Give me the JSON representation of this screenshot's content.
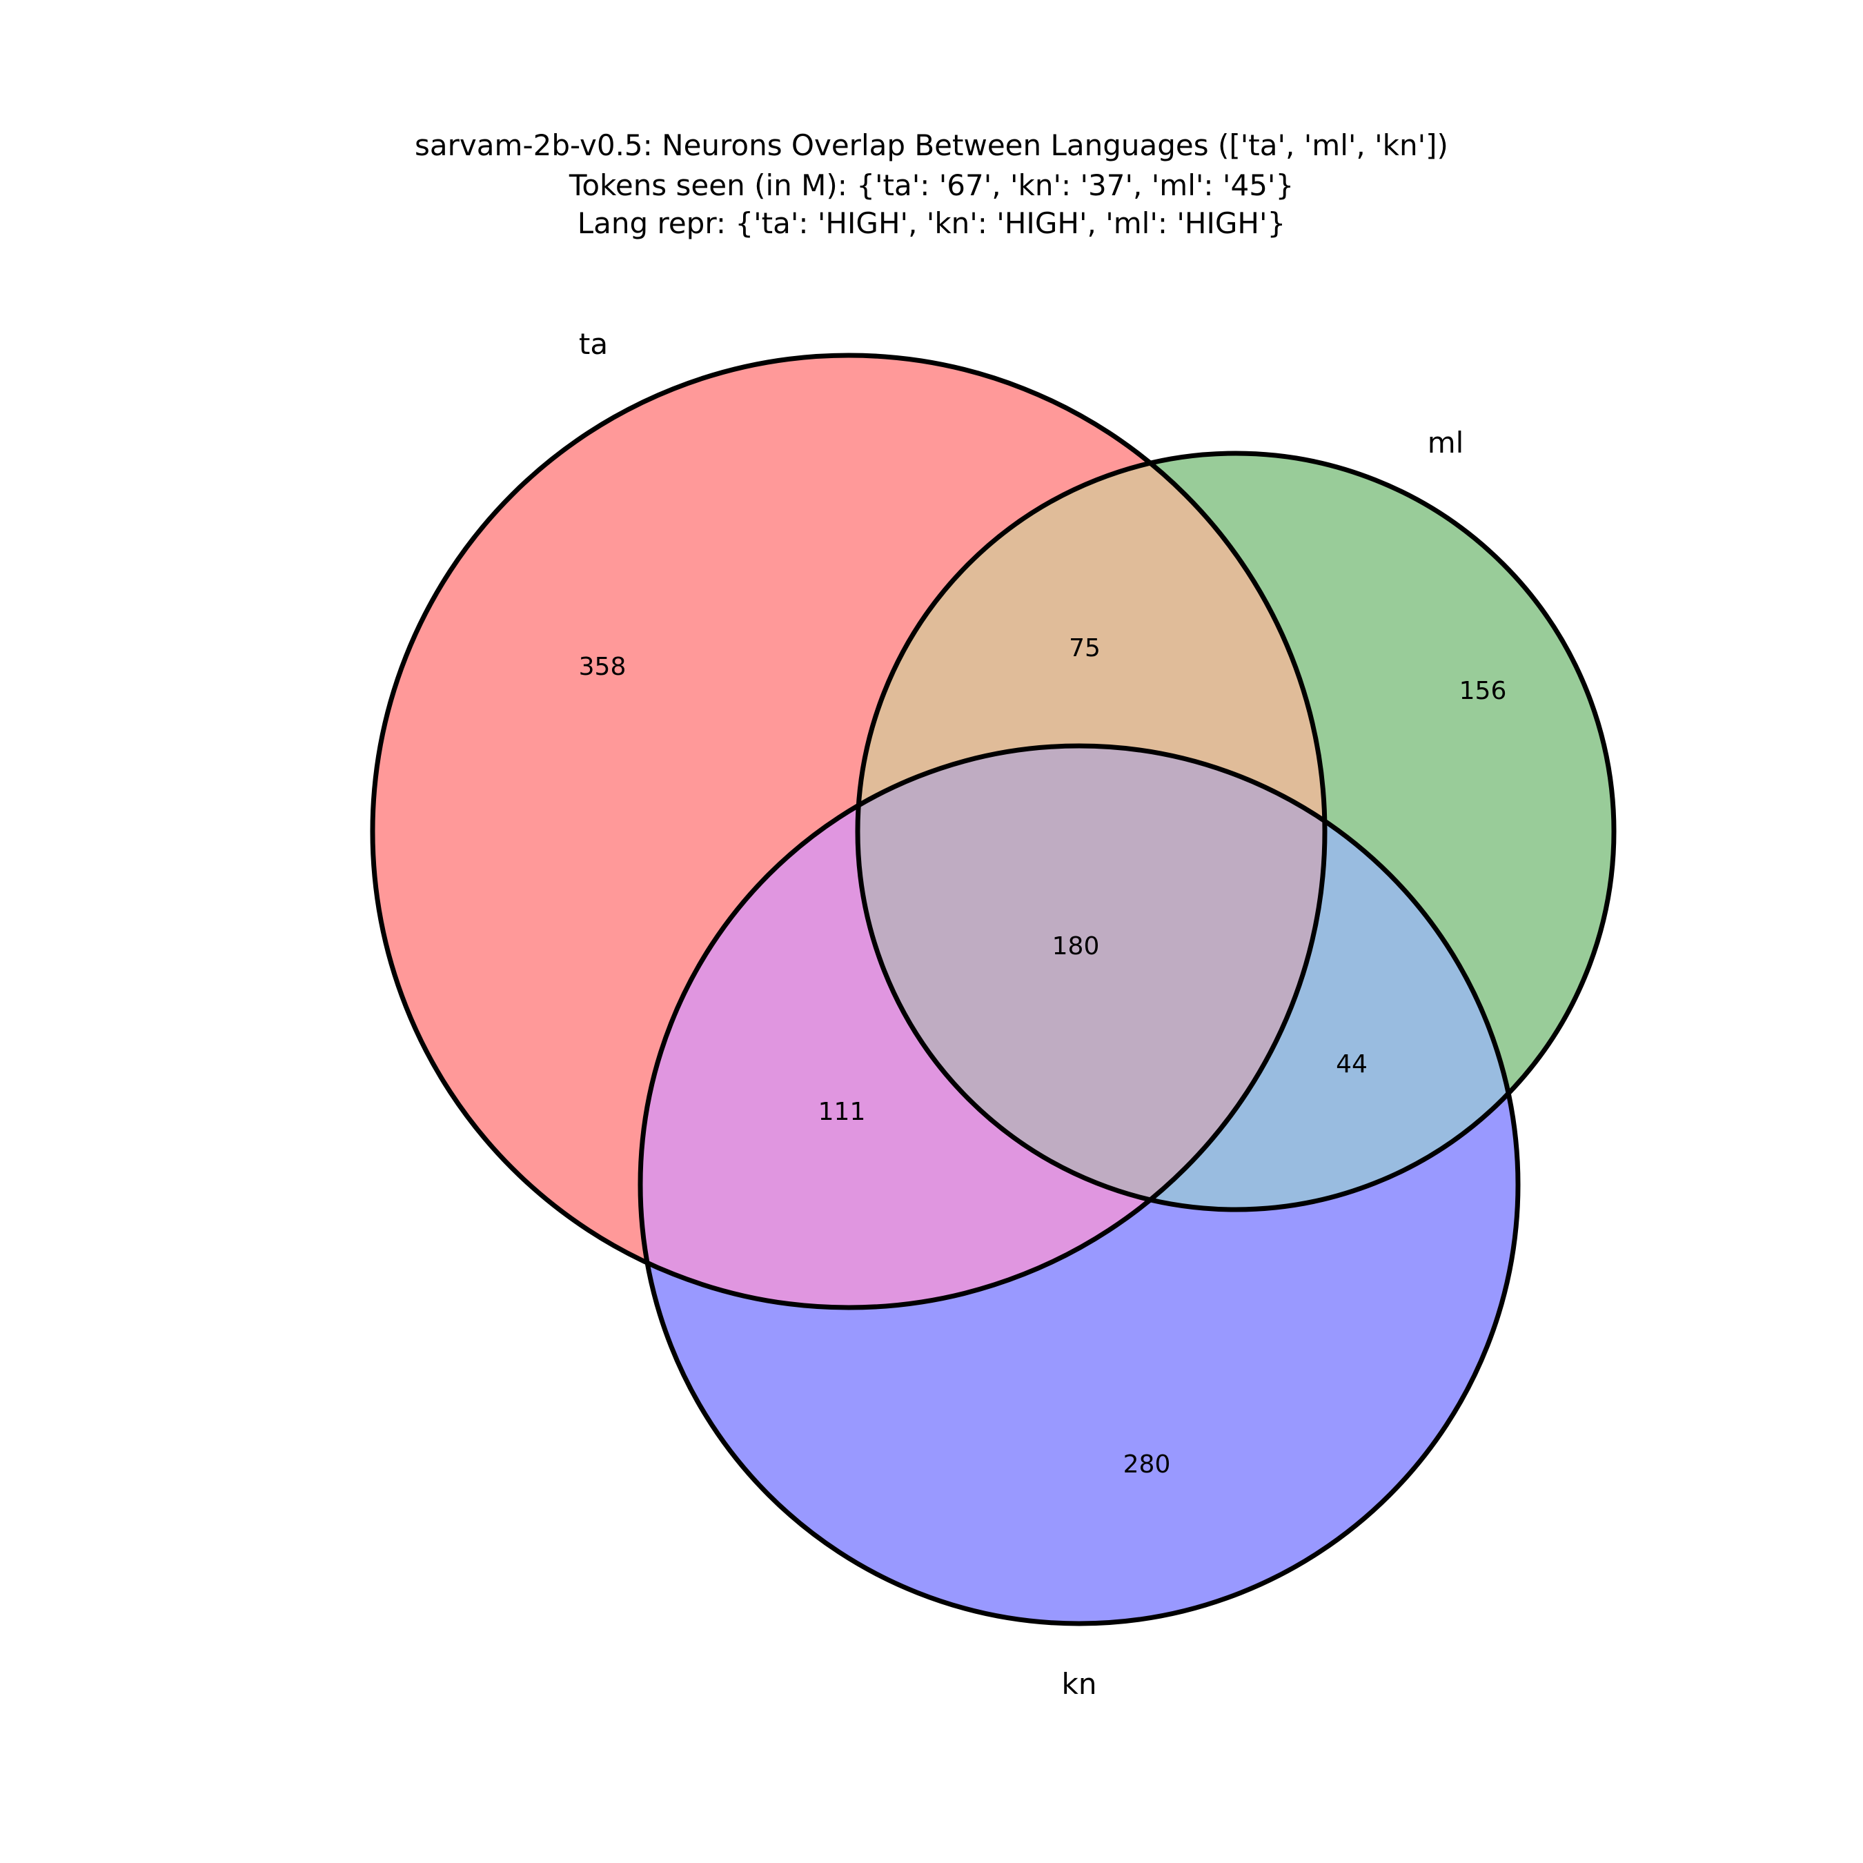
{
  "title": {
    "lines": [
      "sarvam-2b-v0.5: Neurons Overlap Between Languages (['ta', 'ml', 'kn'])",
      "Tokens seen (in M): {'ta': '67', 'kn': '37', 'ml': '45'}",
      "Lang repr: {'ta': 'HIGH', 'kn': 'HIGH', 'ml': 'HIGH'}"
    ]
  },
  "sets": {
    "ta": {
      "label": "ta",
      "color": "#ff9999"
    },
    "ml": {
      "label": "ml",
      "color": "#99cc99"
    },
    "kn": {
      "label": "kn",
      "color": "#9999ff"
    }
  },
  "regions": {
    "ta_only": "358",
    "ml_only": "156",
    "kn_only": "280",
    "ta_ml": "75",
    "ta_kn": "111",
    "ml_kn": "44",
    "ta_ml_kn": "180"
  },
  "region_colors": {
    "ta_only": "#ff9999",
    "ml_only": "#99cc99",
    "kn_only": "#9999ff",
    "ta_ml": "#e0bc99",
    "ta_kn": "#e096e0",
    "ml_kn": "#99bce0",
    "ta_ml_kn": "#bfacc2"
  }
}
